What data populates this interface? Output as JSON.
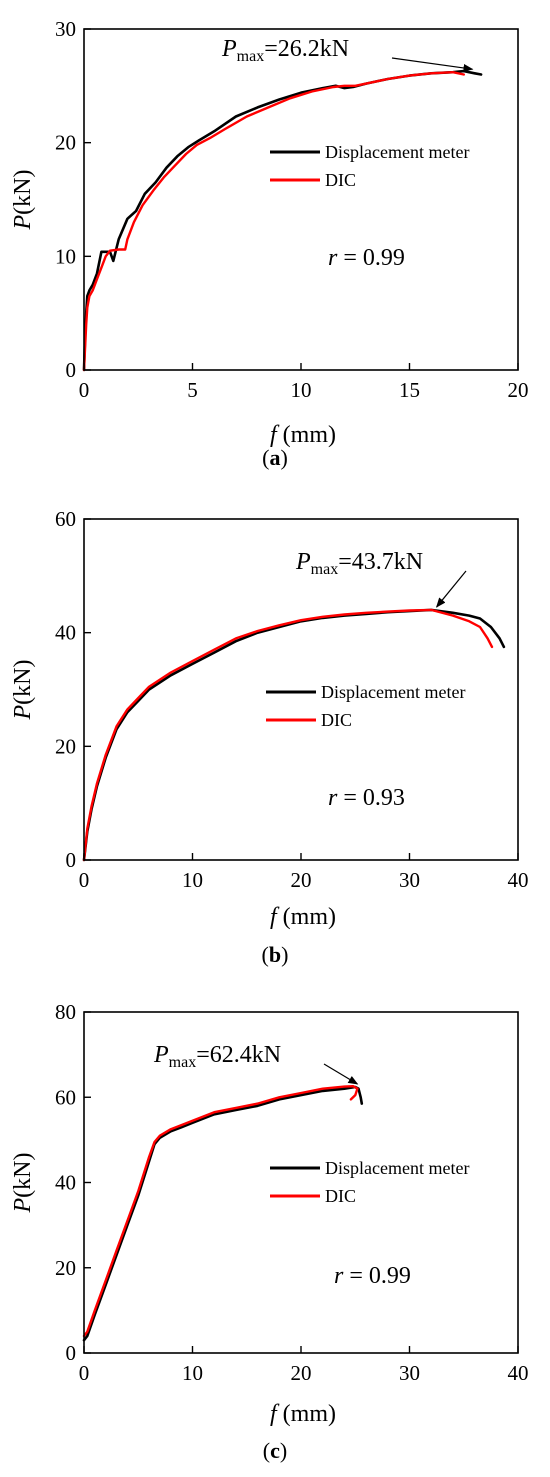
{
  "chart_data": [
    {
      "type": "line",
      "panel": "a",
      "caption": {
        "open": "(",
        "letter": "a",
        "close": ")"
      },
      "xlabel": {
        "symbol": "f",
        "unit": " (mm)"
      },
      "ylabel": {
        "symbol": "P",
        "unit": "(kN)"
      },
      "xlim": [
        0,
        20
      ],
      "ylim": [
        0,
        30
      ],
      "xticks": [
        0,
        5,
        10,
        15,
        20
      ],
      "yticks": [
        0,
        10,
        20,
        30
      ],
      "grid": false,
      "legend_position": "right",
      "annotation": {
        "symbol": "P",
        "subscript": "max",
        "value": "=26.2kN",
        "arrow_to": [
          17.9,
          26.2
        ]
      },
      "correlation": {
        "symbol": "r",
        "value": " = 0.99"
      },
      "series": [
        {
          "name": "Displacement meter",
          "color": "#000000",
          "x": [
            0,
            0.05,
            0.1,
            0.15,
            0.25,
            0.4,
            0.6,
            0.8,
            1.0,
            1.2,
            1.35,
            1.6,
            2.0,
            2.4,
            2.8,
            3.3,
            3.8,
            4.3,
            4.8,
            5.3,
            6.0,
            7.0,
            8.0,
            9.0,
            10.0,
            11.0,
            11.6,
            12.0,
            12.4,
            13.0,
            14.0,
            15.0,
            16.0,
            17.0,
            17.5,
            18.0,
            18.3
          ],
          "y": [
            0,
            3.0,
            5.0,
            6.5,
            7.0,
            7.5,
            8.5,
            10.4,
            10.4,
            10.4,
            9.6,
            11.5,
            13.3,
            14.0,
            15.5,
            16.5,
            17.8,
            18.8,
            19.6,
            20.2,
            21.0,
            22.3,
            23.1,
            23.8,
            24.4,
            24.8,
            25.0,
            24.8,
            24.9,
            25.2,
            25.6,
            25.9,
            26.1,
            26.2,
            26.3,
            26.1,
            26.0
          ]
        },
        {
          "name": "DIC",
          "color": "#ff0000",
          "x": [
            0,
            0.05,
            0.1,
            0.15,
            0.25,
            0.4,
            0.6,
            0.8,
            1.0,
            1.2,
            1.6,
            1.9,
            2.0,
            2.3,
            2.7,
            3.2,
            3.7,
            4.2,
            4.7,
            5.2,
            5.8,
            6.5,
            7.5,
            8.5,
            9.5,
            10.5,
            11.5,
            12.0,
            12.5,
            13.0,
            14.0,
            15.0,
            16.0,
            17.0,
            17.5
          ],
          "y": [
            0,
            2.0,
            4.0,
            5.5,
            6.5,
            7.0,
            8.0,
            9.0,
            10.0,
            10.5,
            10.6,
            10.6,
            11.5,
            13.0,
            14.5,
            15.8,
            17.0,
            18.0,
            19.0,
            19.8,
            20.4,
            21.2,
            22.3,
            23.1,
            23.9,
            24.5,
            24.9,
            25.0,
            25.0,
            25.2,
            25.6,
            25.9,
            26.1,
            26.2,
            26.0
          ]
        }
      ]
    },
    {
      "type": "line",
      "panel": "b",
      "caption": {
        "open": "(",
        "letter": "b",
        "close": ")"
      },
      "xlabel": {
        "symbol": "f",
        "unit": " (mm)"
      },
      "ylabel": {
        "symbol": "P",
        "unit": "(kN)"
      },
      "xlim": [
        0,
        40
      ],
      "ylim": [
        0,
        60
      ],
      "xticks": [
        0,
        10,
        20,
        30,
        40
      ],
      "yticks": [
        0,
        20,
        40,
        60
      ],
      "grid": false,
      "legend_position": "right",
      "annotation": {
        "symbol": "P",
        "subscript": "max",
        "value": "=43.7kN",
        "arrow_to": [
          32.5,
          44.0
        ]
      },
      "correlation": {
        "symbol": "r",
        "value": " = 0.93"
      },
      "series": [
        {
          "name": "Displacement meter",
          "color": "#000000",
          "x": [
            0,
            0.3,
            0.7,
            1.2,
            2.0,
            3.0,
            4.0,
            5.0,
            6.0,
            8.0,
            10.0,
            12.0,
            14.0,
            16.0,
            18.0,
            20.0,
            22.0,
            24.0,
            26.0,
            28.0,
            30.0,
            32.0,
            34.0,
            35.5,
            36.5,
            37.5,
            38.3,
            38.7
          ],
          "y": [
            0,
            5.0,
            9.0,
            13.0,
            18.0,
            23.0,
            26.0,
            28.0,
            30.0,
            32.5,
            34.5,
            36.5,
            38.5,
            40.0,
            41.0,
            42.0,
            42.6,
            43.0,
            43.3,
            43.6,
            43.8,
            44.0,
            43.5,
            43.0,
            42.5,
            41.0,
            39.0,
            37.5
          ]
        },
        {
          "name": "DIC",
          "color": "#ff0000",
          "x": [
            0,
            0.3,
            0.7,
            1.2,
            2.0,
            3.0,
            4.0,
            5.0,
            6.0,
            8.0,
            10.0,
            12.0,
            14.0,
            16.0,
            18.0,
            20.0,
            22.0,
            24.0,
            26.0,
            28.0,
            30.0,
            32.0,
            34.0,
            35.5,
            36.5,
            37.2,
            37.6
          ],
          "y": [
            0,
            5.5,
            9.5,
            13.5,
            18.5,
            23.5,
            26.5,
            28.5,
            30.5,
            33.0,
            35.0,
            37.0,
            39.0,
            40.3,
            41.3,
            42.2,
            42.8,
            43.2,
            43.5,
            43.7,
            43.9,
            44.0,
            43.0,
            42.0,
            41.0,
            39.0,
            37.5
          ]
        }
      ]
    },
    {
      "type": "line",
      "panel": "c",
      "caption": {
        "open": "(",
        "letter": "c",
        "close": ")"
      },
      "xlabel": {
        "symbol": "f",
        "unit": " (mm)"
      },
      "ylabel": {
        "symbol": "P",
        "unit": "(kN)"
      },
      "xlim": [
        0,
        40
      ],
      "ylim": [
        0,
        80
      ],
      "xticks": [
        0,
        10,
        20,
        30,
        40
      ],
      "yticks": [
        0,
        20,
        40,
        60,
        80
      ],
      "grid": false,
      "legend_position": "right",
      "annotation": {
        "symbol": "P",
        "subscript": "max",
        "value": "=62.4kN",
        "arrow_to": [
          25.2,
          62.4
        ]
      },
      "correlation": {
        "symbol": "r",
        "value": " = 0.99"
      },
      "series": [
        {
          "name": "Displacement meter",
          "color": "#000000",
          "x": [
            0,
            0.3,
            1.0,
            2.0,
            3.0,
            4.0,
            5.0,
            6.0,
            6.5,
            7.0,
            8.0,
            9.0,
            10.0,
            12.0,
            14.0,
            16.0,
            18.0,
            20.0,
            22.0,
            24.0,
            25.0,
            25.3,
            25.5,
            25.6
          ],
          "y": [
            3,
            4.0,
            9.0,
            16.0,
            23.0,
            30.0,
            37.0,
            45.0,
            49.0,
            50.5,
            52.0,
            53.0,
            54.0,
            56.0,
            57.0,
            58.0,
            59.5,
            60.5,
            61.5,
            62.0,
            62.4,
            62.0,
            60.0,
            58.5
          ]
        },
        {
          "name": "DIC",
          "color": "#ff0000",
          "x": [
            0,
            0.3,
            1.0,
            2.0,
            3.0,
            4.0,
            5.0,
            6.0,
            6.5,
            7.0,
            8.0,
            9.0,
            10.0,
            12.0,
            14.0,
            16.0,
            18.0,
            20.0,
            22.0,
            24.0,
            24.8,
            25.2,
            25.0,
            24.6
          ],
          "y": [
            4,
            5.0,
            10.0,
            17.0,
            24.0,
            31.0,
            38.0,
            46.0,
            49.5,
            51.0,
            52.5,
            53.5,
            54.5,
            56.5,
            57.5,
            58.5,
            60.0,
            61.0,
            62.0,
            62.5,
            62.6,
            62.0,
            60.5,
            59.5
          ]
        }
      ]
    }
  ]
}
